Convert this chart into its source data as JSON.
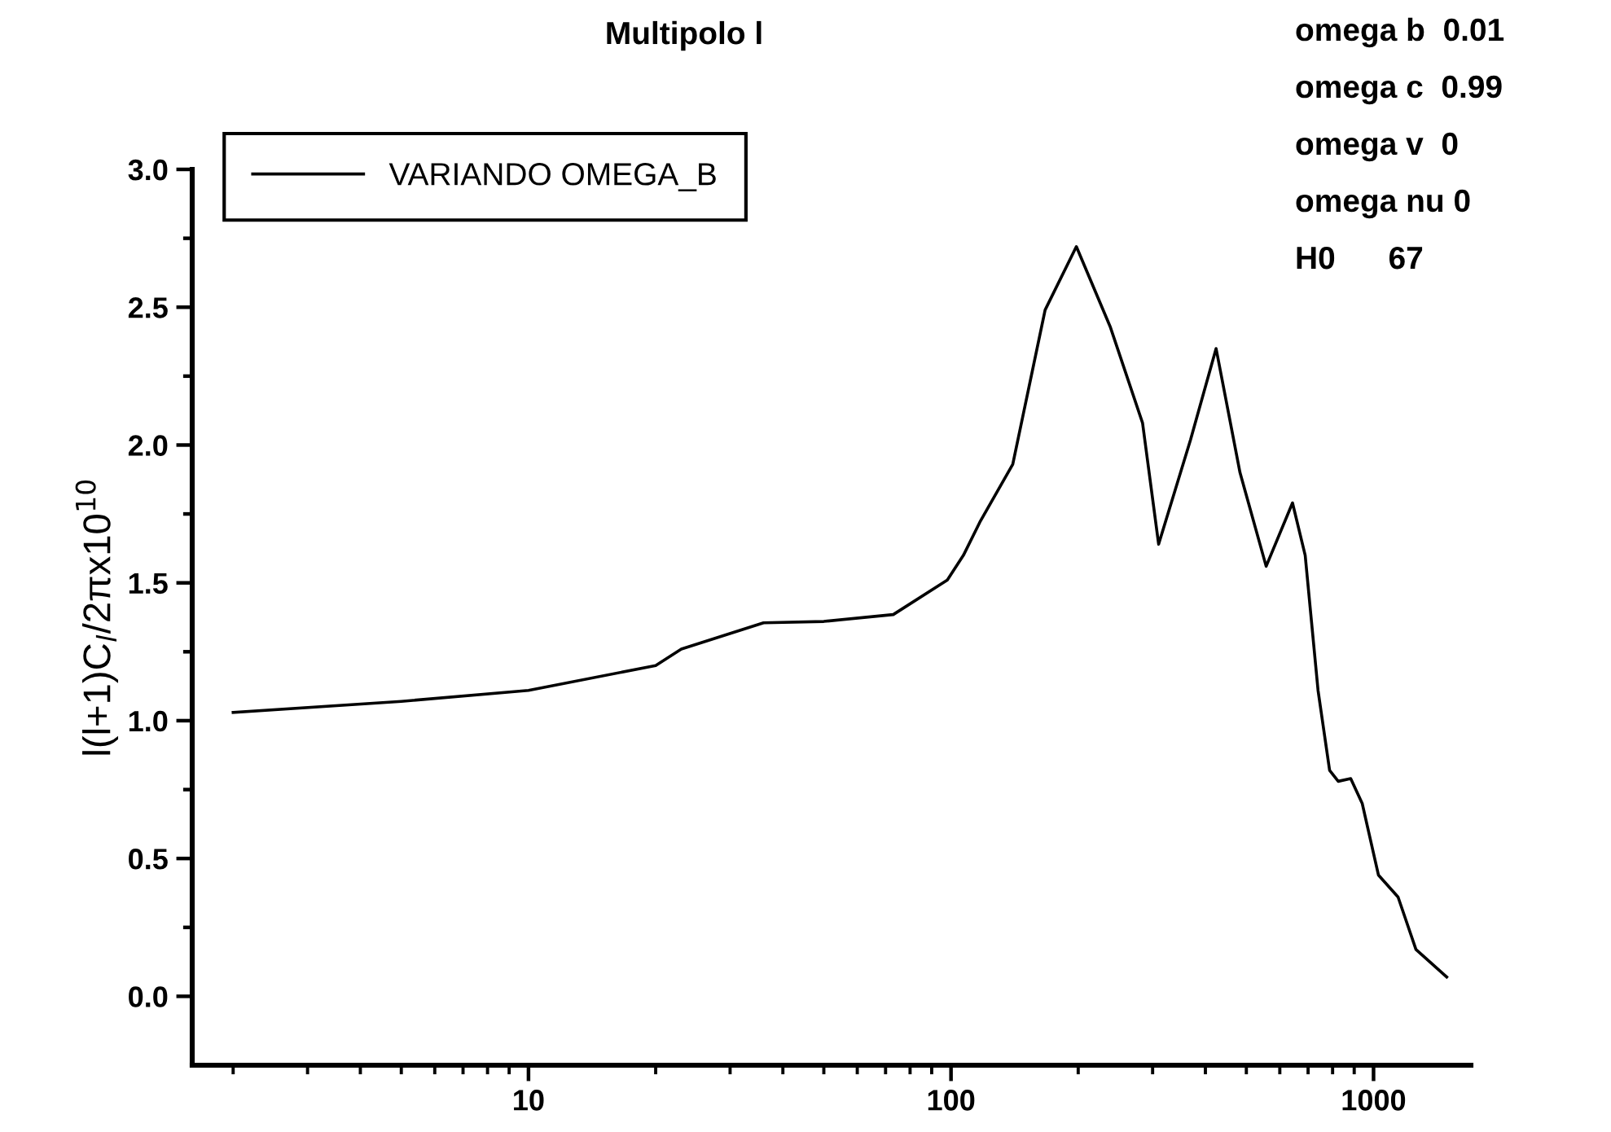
{
  "chart_data": {
    "type": "line",
    "title": "Multipolo l",
    "ylabel": "l(l+1)C$_{l}$/2πx10$^{10}$",
    "annotations": [
      "omega b  0.01",
      "omega c  0.99",
      "omega v  0",
      "omega nu 0",
      "H0      67"
    ],
    "x": [
      2,
      5,
      10,
      20,
      23,
      36,
      50,
      73,
      98,
      107,
      117,
      140,
      167,
      198,
      238,
      284,
      310,
      369,
      424,
      483,
      557,
      643,
      689,
      739,
      787,
      825,
      883,
      940,
      1027,
      1143,
      1260,
      1490
    ],
    "series": [
      {
        "name": "VARIANDO OMEGA_B",
        "color": "#000000",
        "values": [
          1.03,
          1.07,
          1.11,
          1.2,
          1.26,
          1.355,
          1.36,
          1.385,
          1.51,
          1.6,
          1.72,
          1.93,
          2.49,
          2.72,
          2.43,
          2.08,
          1.64,
          2.02,
          2.35,
          1.9,
          1.56,
          1.79,
          1.6,
          1.11,
          0.82,
          0.78,
          0.79,
          0.7,
          0.44,
          0.36,
          0.17,
          0.07
        ]
      }
    ],
    "log": "x",
    "xlim": [
      1.6,
      1700
    ],
    "xticks": [
      10,
      100,
      1000
    ],
    "ylim": [
      -0.25,
      3.0
    ],
    "yticks": [
      {
        "value": 0.0,
        "label": "0.0"
      },
      {
        "value": 0.25,
        "label": null
      },
      {
        "value": 0.5,
        "label": "0.5"
      },
      {
        "value": 0.75,
        "label": null
      },
      {
        "value": 1.0,
        "label": "1.0"
      },
      {
        "value": 1.25,
        "label": null
      },
      {
        "value": 1.5,
        "label": "1.5"
      },
      {
        "value": 1.75,
        "label": null
      },
      {
        "value": 2.0,
        "label": "2.0"
      },
      {
        "value": 2.25,
        "label": null
      },
      {
        "value": 2.5,
        "label": "2.5"
      },
      {
        "value": 2.75,
        "label": null
      },
      {
        "value": 3.0,
        "label": "3.0"
      }
    ],
    "grid": false,
    "legend": "top left",
    "line_style": "solid",
    "marker": "none"
  }
}
